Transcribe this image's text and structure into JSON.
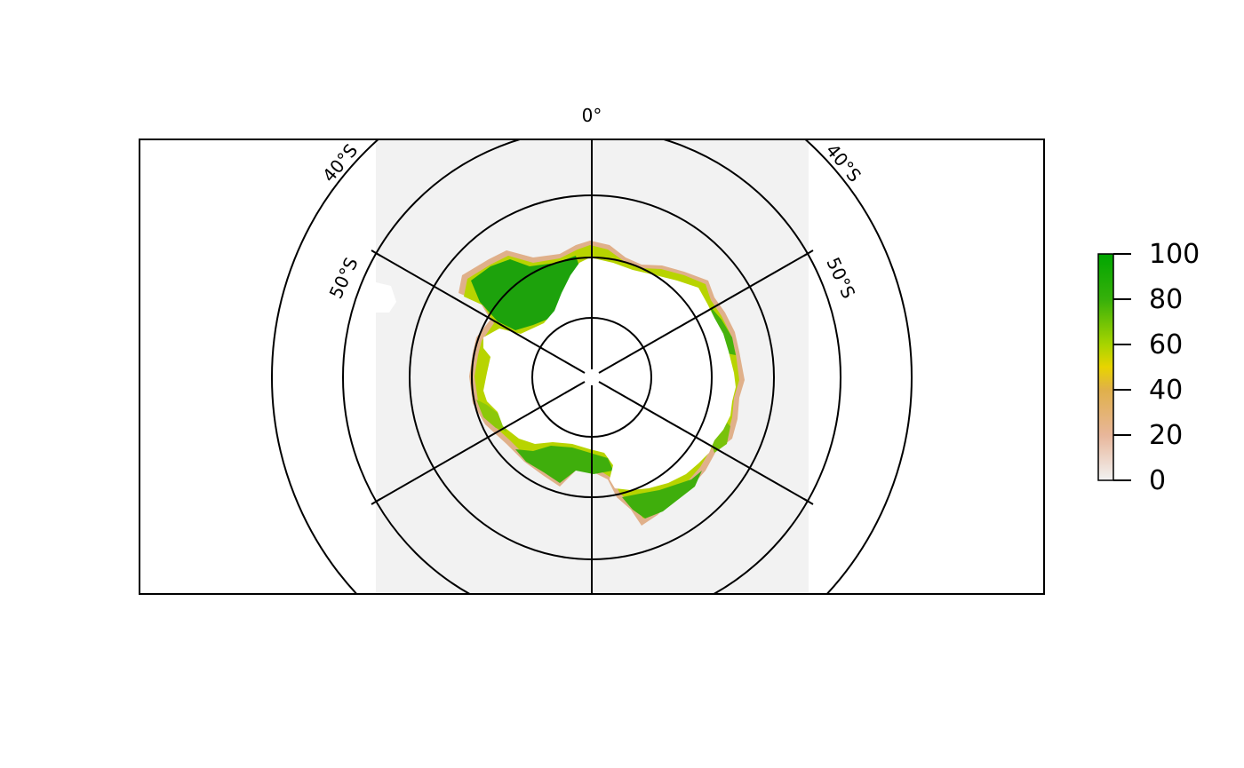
{
  "map": {
    "graticule_labels": {
      "meridian_top": "0°",
      "lat_40_left": "40°S",
      "lat_40_right": "40°S",
      "lat_50_left": "50°S",
      "lat_50_right": "50°S"
    },
    "colors": {
      "background_ocean": "#f2f2f2",
      "land": "#ffffff",
      "frame": "#000000"
    }
  },
  "legend": {
    "ticks": [
      "100",
      "80",
      "60",
      "40",
      "20",
      "0"
    ],
    "min": 0,
    "max": 100,
    "gradient_colors": [
      "#f2f2f2",
      "#e8b69a",
      "#e0a86a",
      "#e8d400",
      "#8cd000",
      "#1d9e0a",
      "#00a600"
    ]
  }
}
